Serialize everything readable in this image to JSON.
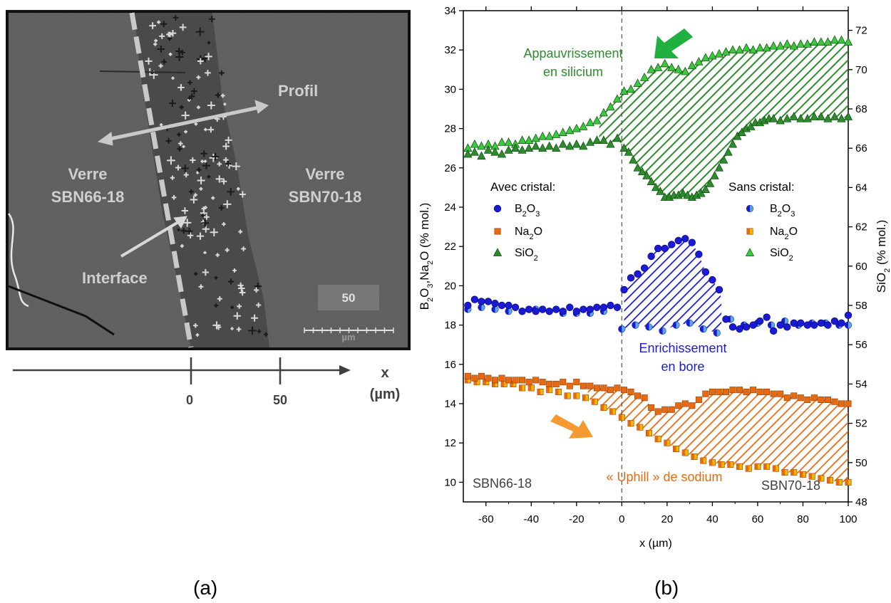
{
  "panel_a": {
    "label": "(a)",
    "profil": "Profil",
    "glass_left_line1": "Verre",
    "glass_left_line2": "SBN66-18",
    "glass_right_line1": "Verre",
    "glass_right_line2": "SBN70-18",
    "interface": "Interface",
    "scale_value": "50",
    "scale_unit": "µm",
    "axis_x_label": "x",
    "axis_x_unit": "(µm)",
    "axis_ticks": [
      "0",
      "50"
    ]
  },
  "panel_b": {
    "label": "(b)"
  },
  "colors": {
    "blue_dark": "#1a1ad6",
    "blue_light": "#5aa8e8",
    "orange_dark": "#e86a10",
    "orange_light": "#f5b800",
    "green_dark": "#2e8b2e",
    "green_light": "#3cc83c",
    "arrow_green": "#20b040",
    "arrow_orange": "#f59a30"
  },
  "chart_data": {
    "type": "scatter",
    "xlabel": "x (µm)",
    "ylabel_left": "B2O3,Na2O (% mol.)",
    "ylabel_right": "SiO2 (% mol.)",
    "xlim": [
      -70,
      100
    ],
    "ylim_left": [
      9,
      34
    ],
    "ylim_right": [
      48,
      73
    ],
    "x_ticks": [
      "-60",
      "-40",
      "-20",
      "0",
      "20",
      "40",
      "60",
      "80",
      "100"
    ],
    "y_left_ticks": [
      "10",
      "12",
      "14",
      "16",
      "18",
      "20",
      "22",
      "24",
      "26",
      "28",
      "30",
      "32",
      "34"
    ],
    "y_right_ticks": [
      "48",
      "50",
      "52",
      "54",
      "56",
      "58",
      "60",
      "62",
      "64",
      "66",
      "68",
      "70",
      "72"
    ],
    "legend_left_title": "Avec cristal:",
    "legend_right_title": "Sans cristal:",
    "legend_items": [
      "B2O3",
      "Na2O",
      "SiO2"
    ],
    "annotations": {
      "silicium_line1": "Appauvrissement",
      "silicium_line2": "en silicium",
      "bore_line1": "Enrichissement",
      "bore_line2": "en bore",
      "sodium": "« Uphill » de  sodium",
      "left_glass": "SBN66-18",
      "right_glass": "SBN70-18"
    },
    "series": [
      {
        "name": "B2O3 avec cristal",
        "axis": "left",
        "x": [
          -68,
          -65,
          -62,
          -59,
          -56,
          -53,
          -50,
          -47,
          -44,
          -41,
          -38,
          -35,
          -32,
          -29,
          -26,
          -23,
          -20,
          -17,
          -14,
          -11,
          -8,
          -5,
          -2,
          1,
          4,
          7,
          10,
          13,
          16,
          19,
          22,
          25,
          28,
          31,
          34,
          37,
          40,
          43,
          46,
          49,
          52,
          55,
          58,
          61,
          64,
          67,
          70,
          73,
          76,
          79,
          82,
          85,
          88,
          91,
          94,
          97,
          100
        ],
        "y": [
          19.0,
          19.3,
          19.2,
          19.2,
          19.1,
          19.0,
          19.0,
          18.9,
          18.7,
          18.8,
          18.7,
          18.8,
          18.7,
          18.8,
          18.7,
          18.9,
          18.7,
          18.8,
          18.8,
          18.9,
          18.9,
          19.0,
          18.9,
          19.8,
          20.4,
          20.6,
          20.9,
          21.5,
          21.9,
          21.9,
          22.1,
          22.3,
          22.4,
          22.2,
          21.6,
          20.7,
          20.3,
          19.8,
          18.3,
          17.9,
          17.8,
          17.9,
          18.0,
          18.2,
          18.4,
          17.7,
          18.0,
          17.9,
          18.1,
          18.1,
          18.0,
          18.0,
          18.1,
          18.0,
          18.2,
          18.1,
          18.5
        ]
      },
      {
        "name": "B2O3 sans cristal",
        "axis": "left",
        "x": [
          -68,
          -62,
          -56,
          -50,
          -44,
          -38,
          -32,
          -26,
          -20,
          -14,
          -8,
          0,
          6,
          12,
          18,
          24,
          30,
          36,
          42,
          48,
          54,
          60,
          66,
          72,
          78,
          84,
          90,
          96,
          100
        ],
        "y": [
          18.8,
          18.9,
          18.8,
          18.7,
          18.7,
          18.8,
          18.7,
          18.6,
          18.6,
          18.6,
          18.7,
          17.8,
          18.0,
          17.9,
          17.7,
          18.0,
          18.1,
          17.8,
          17.6,
          18.3,
          18.0,
          18.1,
          18.0,
          18.2,
          18.0,
          18.1,
          18.1,
          18.0,
          18.0
        ]
      },
      {
        "name": "Na2O avec cristal",
        "axis": "left",
        "x": [
          -68,
          -65,
          -62,
          -59,
          -56,
          -53,
          -50,
          -47,
          -44,
          -41,
          -38,
          -35,
          -32,
          -29,
          -26,
          -23,
          -20,
          -17,
          -14,
          -11,
          -8,
          -5,
          -2,
          1,
          4,
          7,
          10,
          13,
          16,
          19,
          22,
          25,
          28,
          31,
          34,
          37,
          40,
          43,
          46,
          49,
          52,
          55,
          58,
          61,
          64,
          67,
          70,
          73,
          76,
          79,
          82,
          85,
          88,
          91,
          94,
          97,
          100
        ],
        "y": [
          15.4,
          15.3,
          15.4,
          15.3,
          15.2,
          15.3,
          15.2,
          15.2,
          15.2,
          15.1,
          15.2,
          15.1,
          15.0,
          15.0,
          15.1,
          14.9,
          15.1,
          14.9,
          14.9,
          14.8,
          14.8,
          14.7,
          14.8,
          14.7,
          14.6,
          14.4,
          14.3,
          13.8,
          13.6,
          13.7,
          13.7,
          13.9,
          14.0,
          13.9,
          14.2,
          14.5,
          14.6,
          14.6,
          14.6,
          14.7,
          14.7,
          14.6,
          14.7,
          14.6,
          14.6,
          14.5,
          14.5,
          14.3,
          14.4,
          14.3,
          14.2,
          14.3,
          14.2,
          14.2,
          14.1,
          14.0,
          14.0
        ]
      },
      {
        "name": "Na2O sans cristal",
        "axis": "left",
        "x": [
          -68,
          -64,
          -60,
          -56,
          -52,
          -48,
          -44,
          -40,
          -36,
          -32,
          -28,
          -24,
          -20,
          -16,
          -12,
          -8,
          -4,
          0,
          4,
          8,
          12,
          16,
          20,
          24,
          28,
          32,
          36,
          40,
          44,
          48,
          52,
          56,
          60,
          64,
          68,
          72,
          76,
          80,
          84,
          88,
          92,
          96,
          100
        ],
        "y": [
          15.2,
          15.1,
          15.1,
          15.0,
          15.0,
          15.0,
          14.8,
          14.8,
          14.6,
          14.7,
          14.6,
          14.4,
          14.4,
          14.3,
          14.1,
          13.8,
          13.6,
          13.3,
          13.0,
          12.8,
          12.5,
          12.2,
          12.0,
          11.7,
          11.5,
          11.3,
          11.1,
          11.0,
          10.9,
          10.9,
          10.8,
          10.7,
          10.8,
          10.8,
          10.7,
          10.5,
          10.5,
          10.4,
          10.3,
          10.2,
          10.1,
          10.0,
          10.0
        ]
      },
      {
        "name": "SiO2 avec cristal",
        "axis": "right",
        "x": [
          -68,
          -65,
          -62,
          -59,
          -56,
          -53,
          -50,
          -47,
          -44,
          -41,
          -38,
          -35,
          -32,
          -29,
          -26,
          -23,
          -20,
          -17,
          -14,
          -11,
          -8,
          -5,
          -2,
          1,
          3,
          5,
          7,
          9,
          11,
          13,
          15,
          17,
          19,
          21,
          23,
          25,
          27,
          29,
          31,
          33,
          35,
          37,
          39,
          41,
          43,
          45,
          47,
          49,
          51,
          53,
          55,
          57,
          59,
          61,
          63,
          65,
          67,
          70,
          73,
          76,
          79,
          82,
          85,
          88,
          91,
          94,
          97,
          100
        ],
        "y": [
          65.7,
          65.8,
          65.6,
          65.9,
          65.8,
          65.7,
          65.9,
          66.0,
          65.9,
          66.0,
          66.1,
          66.0,
          66.1,
          66.0,
          66.2,
          66.1,
          66.2,
          66.1,
          66.3,
          66.4,
          66.4,
          66.2,
          66.5,
          66.0,
          65.8,
          65.4,
          65.0,
          64.8,
          64.6,
          64.3,
          64.0,
          63.8,
          63.5,
          63.5,
          63.6,
          63.6,
          63.7,
          63.6,
          63.5,
          63.6,
          63.7,
          63.9,
          64.2,
          64.6,
          65.0,
          65.4,
          65.8,
          66.2,
          66.6,
          66.8,
          67.0,
          67.1,
          67.3,
          67.3,
          67.4,
          67.5,
          67.5,
          67.4,
          67.5,
          67.6,
          67.5,
          67.5,
          67.6,
          67.6,
          67.5,
          67.6,
          67.5,
          67.6
        ]
      },
      {
        "name": "SiO2 sans cristal",
        "axis": "right",
        "x": [
          -68,
          -65,
          -62,
          -59,
          -56,
          -53,
          -50,
          -47,
          -44,
          -41,
          -38,
          -35,
          -32,
          -29,
          -26,
          -23,
          -20,
          -17,
          -14,
          -11,
          -8,
          -5,
          -2,
          1,
          4,
          7,
          10,
          13,
          16,
          19,
          22,
          25,
          28,
          31,
          34,
          37,
          40,
          43,
          46,
          49,
          52,
          55,
          58,
          61,
          64,
          67,
          70,
          73,
          76,
          79,
          82,
          85,
          88,
          91,
          94,
          97,
          100
        ],
        "y": [
          66.0,
          66.2,
          66.1,
          66.2,
          66.1,
          66.3,
          66.3,
          66.2,
          66.4,
          66.4,
          66.5,
          66.6,
          66.6,
          66.7,
          66.8,
          66.9,
          67.0,
          67.1,
          67.3,
          67.4,
          67.8,
          68.1,
          68.5,
          68.9,
          69.0,
          69.3,
          69.6,
          70.0,
          70.1,
          70.3,
          70.1,
          70.0,
          69.9,
          70.2,
          70.4,
          70.6,
          70.7,
          70.8,
          70.9,
          71.0,
          71.0,
          71.1,
          71.0,
          71.1,
          71.1,
          71.2,
          71.2,
          71.3,
          71.2,
          71.3,
          71.3,
          71.4,
          71.4,
          71.4,
          71.5,
          71.5,
          71.4
        ]
      }
    ]
  }
}
